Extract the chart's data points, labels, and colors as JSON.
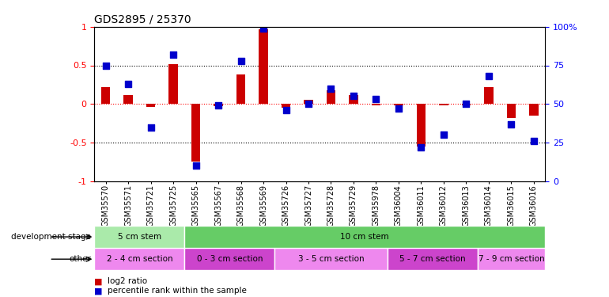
{
  "title": "GDS2895 / 25370",
  "samples": [
    "GSM35570",
    "GSM35571",
    "GSM35721",
    "GSM35725",
    "GSM35565",
    "GSM35567",
    "GSM35568",
    "GSM35569",
    "GSM35726",
    "GSM35727",
    "GSM35728",
    "GSM35729",
    "GSM35978",
    "GSM36004",
    "GSM36011",
    "GSM36012",
    "GSM36013",
    "GSM36014",
    "GSM36015",
    "GSM36016"
  ],
  "log2_ratio": [
    0.22,
    0.12,
    -0.04,
    0.52,
    -0.75,
    -0.03,
    0.38,
    0.97,
    -0.05,
    0.05,
    0.18,
    0.12,
    -0.02,
    -0.02,
    -0.55,
    -0.02,
    -0.02,
    0.22,
    -0.18,
    -0.15
  ],
  "percentile": [
    75,
    63,
    35,
    82,
    10,
    49,
    78,
    99,
    46,
    50,
    60,
    55,
    53,
    47,
    22,
    30,
    50,
    68,
    37,
    26
  ],
  "dev_stage_boundaries": [
    {
      "label": "5 cm stem",
      "start": 0,
      "end": 4
    },
    {
      "label": "10 cm stem",
      "start": 4,
      "end": 20
    }
  ],
  "other_groups": [
    {
      "label": "2 - 4 cm section",
      "start": 0,
      "end": 4
    },
    {
      "label": "0 - 3 cm section",
      "start": 4,
      "end": 8
    },
    {
      "label": "3 - 5 cm section",
      "start": 8,
      "end": 13
    },
    {
      "label": "5 - 7 cm section",
      "start": 13,
      "end": 17
    },
    {
      "label": "7 - 9 cm section",
      "start": 17,
      "end": 20
    }
  ],
  "bar_color": "#cc0000",
  "dot_color": "#0000cc",
  "ylim_left": [
    -1,
    1
  ],
  "yticks_left": [
    -1,
    -0.5,
    0,
    0.5,
    1
  ],
  "ytick_labels_left": [
    "-1",
    "-0.5",
    "0",
    "0.5",
    "1"
  ],
  "yticks_right": [
    0,
    25,
    50,
    75,
    100
  ],
  "ytick_labels_right": [
    "0",
    "25",
    "50",
    "75",
    "100%"
  ],
  "dev_color_light": "#aaeaaa",
  "dev_color_dark": "#66cc66",
  "other_color_light": "#ee88ee",
  "other_color_dark": "#cc44cc",
  "dev_label": "development stage",
  "other_label": "other",
  "legend_red_label": "log2 ratio",
  "legend_blue_label": "percentile rank within the sample"
}
